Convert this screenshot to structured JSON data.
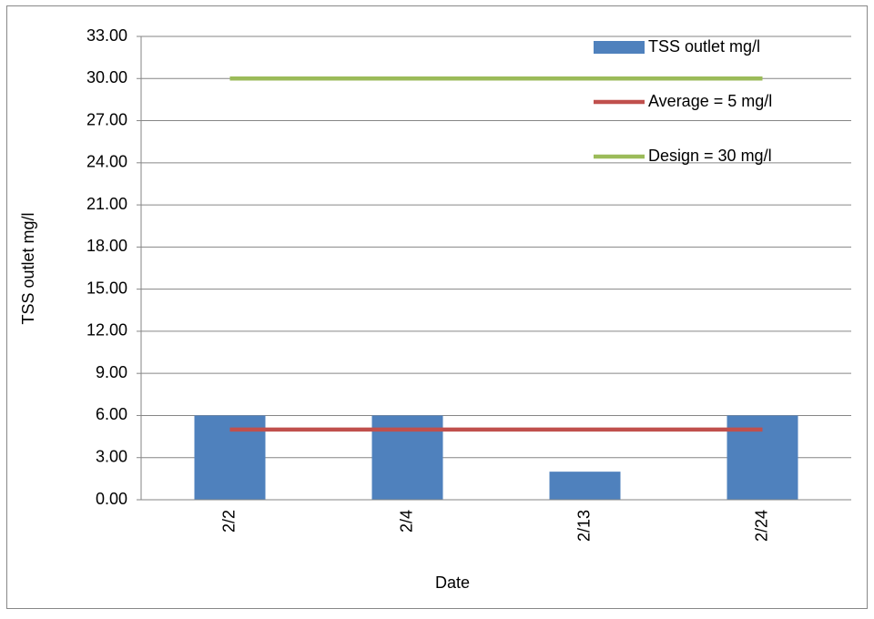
{
  "chart_data": {
    "type": "bar",
    "x_label": "Date",
    "y_label": "TSS outlet mg/l",
    "categories": [
      "2/2",
      "2/4",
      "2/13",
      "2/24"
    ],
    "series": [
      {
        "name": "TSS outlet mg/l",
        "type": "bar",
        "color": "#4f81bd",
        "values": [
          6,
          6,
          2,
          6
        ]
      },
      {
        "name": "Average = 5 mg/l",
        "type": "line",
        "color": "#c0504d",
        "values": [
          5,
          5,
          5,
          5
        ]
      },
      {
        "name": "Design = 30 mg/l",
        "type": "line",
        "color": "#9bbb59",
        "values": [
          30,
          30,
          30,
          30
        ]
      }
    ],
    "ylim": [
      0,
      33
    ],
    "yticks": [
      {
        "value": 0,
        "label": "0.00"
      },
      {
        "value": 3,
        "label": "3.00"
      },
      {
        "value": 6,
        "label": "6.00"
      },
      {
        "value": 9,
        "label": "9.00"
      },
      {
        "value": 12,
        "label": "12.00"
      },
      {
        "value": 15,
        "label": "15.00"
      },
      {
        "value": 18,
        "label": "18.00"
      },
      {
        "value": 21,
        "label": "21.00"
      },
      {
        "value": 24,
        "label": "24.00"
      },
      {
        "value": 27,
        "label": "27.00"
      },
      {
        "value": 30,
        "label": "30.00"
      },
      {
        "value": 33,
        "label": "33.00"
      }
    ],
    "grid": true,
    "legend": "upper right"
  }
}
